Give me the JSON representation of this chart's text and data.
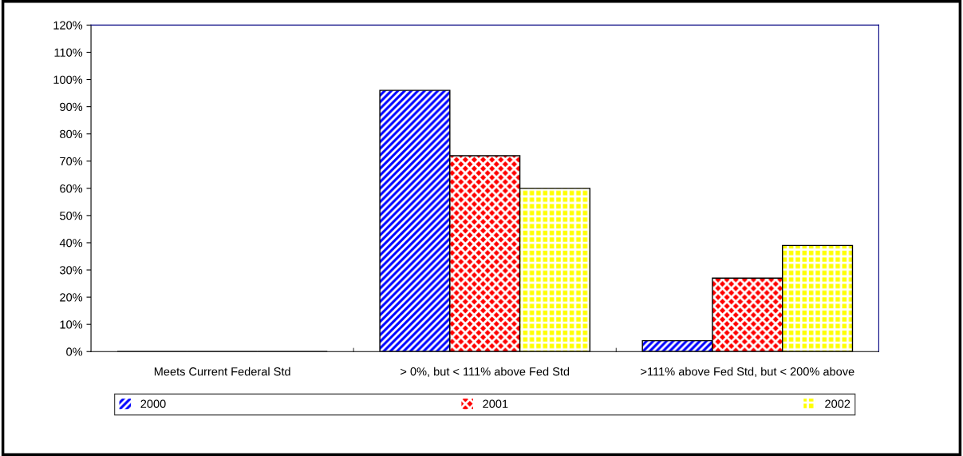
{
  "chart_data": {
    "type": "bar",
    "categories": [
      "Meets Current Federal Std",
      "> 0%, but < 111% above Fed Std",
      ">111% above Fed Std, but < 200% above"
    ],
    "series": [
      {
        "name": "2000",
        "color": "#0000ff",
        "values": [
          0,
          96,
          4
        ]
      },
      {
        "name": "2001",
        "color": "#ff0000",
        "values": [
          0,
          72,
          27
        ]
      },
      {
        "name": "2002",
        "color": "#ffff00",
        "values": [
          0,
          60,
          39
        ]
      }
    ],
    "ylim": [
      0,
      120
    ],
    "yticks": [
      {
        "value": 0,
        "label": "0%"
      },
      {
        "value": 10,
        "label": "10%"
      },
      {
        "value": 20,
        "label": "20%"
      },
      {
        "value": 30,
        "label": "30%"
      },
      {
        "value": 40,
        "label": "40%"
      },
      {
        "value": 50,
        "label": "50%"
      },
      {
        "value": 60,
        "label": "60%"
      },
      {
        "value": 70,
        "label": "70%"
      },
      {
        "value": 80,
        "label": "80%"
      },
      {
        "value": 90,
        "label": "90%"
      },
      {
        "value": 100,
        "label": "100%"
      },
      {
        "value": 110,
        "label": "110%"
      },
      {
        "value": 120,
        "label": "120%"
      }
    ],
    "grid": false,
    "legend": "bottom"
  }
}
